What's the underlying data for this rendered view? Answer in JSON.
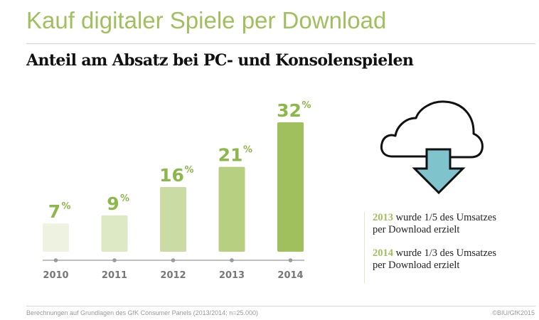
{
  "header": {
    "title": "Kauf digitaler Spiele per Download",
    "subtitle": "Anteil am Absatz bei PC- und Konsolenspielen"
  },
  "chart_data": {
    "type": "bar",
    "title": "Anteil am Absatz bei PC- und Konsolenspielen",
    "xlabel": "",
    "ylabel": "",
    "unit": "%",
    "ylim": [
      0,
      32
    ],
    "grid": false,
    "categories": [
      "2010",
      "2011",
      "2012",
      "2013",
      "2014"
    ],
    "values": [
      7,
      9,
      16,
      21,
      32
    ],
    "data_labels": [
      "7",
      "9",
      "16",
      "21",
      "32"
    ],
    "bar_colors": [
      "#eef2e1",
      "#dde8c4",
      "#cadca3",
      "#b6cf80",
      "#9fc05c"
    ],
    "label_color": "#8cb84a",
    "axis_color": "#999999"
  },
  "sidebar": {
    "icon": "cloud-download-icon",
    "icon_fill": "#7fc3cc",
    "notes": [
      {
        "year": "2013",
        "text": " wurde 1/5 des Umsatzes",
        "line2": "per Download erzielt"
      },
      {
        "year": "2014",
        "text": " wurde 1/3 des Umsatzes",
        "line2": "per Download erzielt"
      }
    ]
  },
  "footer": {
    "source": "Berechnungen auf Grundlagen des GfK Consumer Panels (2013/2014; n=25.000)",
    "copyright": "©BIU/GfK2015"
  }
}
